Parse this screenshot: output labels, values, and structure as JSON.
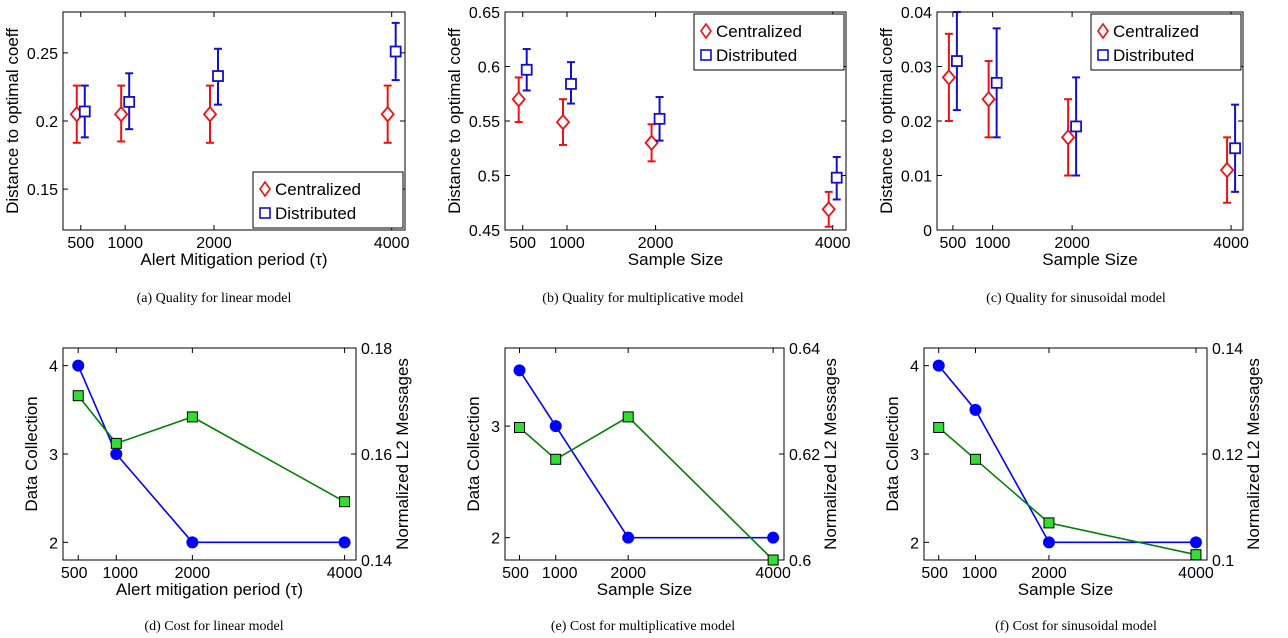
{
  "colors": {
    "centralized": "#ee1111",
    "distributed": "#1111cc",
    "data_collection": "#0000ff",
    "l2_messages": "#008000",
    "l2_marker_fill": "#33dd33"
  },
  "chart_data": [
    {
      "type": "scatter",
      "caption": "(a)  Quality for linear model",
      "xlabel": "Alert Mitigation period (τ)",
      "ylabel": "Distance to optimal coeff",
      "xlim": [
        300,
        4150
      ],
      "ylim": [
        0.12,
        0.28
      ],
      "xticks": [
        500,
        1000,
        2000,
        4000
      ],
      "yticks": [
        0.15,
        0.2,
        0.25
      ],
      "ytick_labels": [
        "0.15",
        "0.2",
        "0.25"
      ],
      "legend": "bottom-right",
      "series": [
        {
          "name": "Centralized",
          "marker": "diamond",
          "x": [
            500,
            1000,
            2000,
            4000
          ],
          "y": [
            0.205,
            0.205,
            0.205,
            0.205
          ],
          "err_low": [
            0.184,
            0.185,
            0.184,
            0.184
          ],
          "err_high": [
            0.226,
            0.226,
            0.226,
            0.226
          ]
        },
        {
          "name": "Distributed",
          "marker": "square",
          "x": [
            500,
            1000,
            2000,
            4000
          ],
          "y": [
            0.207,
            0.214,
            0.233,
            0.251
          ],
          "err_low": [
            0.188,
            0.194,
            0.212,
            0.23
          ],
          "err_high": [
            0.226,
            0.235,
            0.253,
            0.272
          ]
        }
      ]
    },
    {
      "type": "scatter",
      "caption": "(b)  Quality for multiplicative model",
      "xlabel": "Sample Size",
      "ylabel": "Distance to optimal coeff",
      "xlim": [
        300,
        4150
      ],
      "ylim": [
        0.45,
        0.65
      ],
      "xticks": [
        500,
        1000,
        2000,
        4000
      ],
      "yticks": [
        0.45,
        0.5,
        0.55,
        0.6,
        0.65
      ],
      "ytick_labels": [
        "0.45",
        "0.5",
        "0.55",
        "0.6",
        "0.65"
      ],
      "legend": "top-right",
      "series": [
        {
          "name": "Centralized",
          "marker": "diamond",
          "x": [
            500,
            1000,
            2000,
            4000
          ],
          "y": [
            0.57,
            0.549,
            0.53,
            0.469
          ],
          "err_low": [
            0.549,
            0.528,
            0.513,
            0.453
          ],
          "err_high": [
            0.59,
            0.57,
            0.547,
            0.485
          ]
        },
        {
          "name": "Distributed",
          "marker": "square",
          "x": [
            500,
            1000,
            2000,
            4000
          ],
          "y": [
            0.597,
            0.584,
            0.552,
            0.498
          ],
          "err_low": [
            0.578,
            0.566,
            0.532,
            0.478
          ],
          "err_high": [
            0.616,
            0.604,
            0.572,
            0.517
          ]
        }
      ]
    },
    {
      "type": "scatter",
      "caption": "(c)  Quality for sinusoidal model",
      "xlabel": "Sample Size",
      "ylabel": "Distance to optimal coeff",
      "xlim": [
        300,
        4150
      ],
      "ylim": [
        0,
        0.04
      ],
      "xticks": [
        500,
        1000,
        2000,
        4000
      ],
      "yticks": [
        0,
        0.01,
        0.02,
        0.03,
        0.04
      ],
      "ytick_labels": [
        "0",
        "0.01",
        "0.02",
        "0.03",
        "0.04"
      ],
      "legend": "top-right",
      "series": [
        {
          "name": "Centralized",
          "marker": "diamond",
          "x": [
            500,
            1000,
            2000,
            4000
          ],
          "y": [
            0.028,
            0.024,
            0.017,
            0.011
          ],
          "err_low": [
            0.02,
            0.017,
            0.01,
            0.005
          ],
          "err_high": [
            0.036,
            0.031,
            0.024,
            0.017
          ]
        },
        {
          "name": "Distributed",
          "marker": "square",
          "x": [
            500,
            1000,
            2000,
            4000
          ],
          "y": [
            0.031,
            0.027,
            0.019,
            0.015
          ],
          "err_low": [
            0.022,
            0.017,
            0.01,
            0.007
          ],
          "err_high": [
            0.04,
            0.037,
            0.028,
            0.023
          ]
        }
      ]
    },
    {
      "type": "line",
      "caption": "(d)  Cost for linear model",
      "xlabel": "Alert mitigation period (τ)",
      "ylabel": "Data Collection",
      "y2label": "Normalized L2 Messages",
      "xlim": [
        300,
        4150
      ],
      "ylim": [
        1.8,
        4.2
      ],
      "y2lim": [
        0.14,
        0.18
      ],
      "xticks": [
        500,
        1000,
        2000,
        4000
      ],
      "xtick_labels": [
        "500",
        "1000",
        "2000",
        "4000"
      ],
      "yticks": [
        2,
        3,
        4
      ],
      "ytick_labels": [
        "2",
        "3",
        "4"
      ],
      "y2ticks": [
        0.14,
        0.16,
        0.18
      ],
      "y2tick_labels": [
        "0.14",
        "0.16",
        "0.18"
      ],
      "series": [
        {
          "name": "Data Collection",
          "axis": "left",
          "marker": "circle",
          "x": [
            500,
            1000,
            2000,
            4000
          ],
          "y": [
            4,
            3,
            2,
            2
          ]
        },
        {
          "name": "Normalized L2 Messages",
          "axis": "right",
          "marker": "square",
          "x": [
            500,
            1000,
            2000,
            4000
          ],
          "y": [
            0.171,
            0.162,
            0.167,
            0.151
          ]
        }
      ]
    },
    {
      "type": "line",
      "caption": "(e)  Cost for multiplicative model",
      "xlabel": "Sample Size",
      "ylabel": "Data Collection",
      "y2label": "Normalized L2 Messages",
      "xlim": [
        300,
        4150
      ],
      "ylim": [
        1.8,
        3.7
      ],
      "y2lim": [
        0.6,
        0.64
      ],
      "xticks": [
        500,
        1000,
        2000,
        4000
      ],
      "xtick_labels": [
        "500",
        "1000",
        "2000",
        "4000"
      ],
      "yticks": [
        2,
        3
      ],
      "ytick_labels": [
        "2",
        "3"
      ],
      "y2ticks": [
        0.6,
        0.62,
        0.64
      ],
      "y2tick_labels": [
        "0.6",
        "0.62",
        "0.64"
      ],
      "series": [
        {
          "name": "Data Collection",
          "axis": "left",
          "marker": "circle",
          "x": [
            500,
            1000,
            2000,
            4000
          ],
          "y": [
            3.5,
            3.0,
            2.0,
            2.0
          ]
        },
        {
          "name": "Normalized L2 Messages",
          "axis": "right",
          "marker": "square",
          "x": [
            500,
            1000,
            2000,
            4000
          ],
          "y": [
            0.625,
            0.619,
            0.627,
            0.6
          ]
        }
      ]
    },
    {
      "type": "line",
      "caption": "(f)  Cost for sinusoidal model",
      "xlabel": "Sample Size",
      "ylabel": "Data Collection",
      "y2label": "Normalized L2 Messages",
      "xlim": [
        300,
        4150
      ],
      "ylim": [
        1.8,
        4.2
      ],
      "y2lim": [
        0.1,
        0.14
      ],
      "xticks": [
        500,
        1000,
        2000,
        4000
      ],
      "xtick_labels": [
        "500",
        "1000",
        "2000",
        "4000"
      ],
      "yticks": [
        2,
        3,
        4
      ],
      "ytick_labels": [
        "2",
        "3",
        "4"
      ],
      "y2ticks": [
        0.1,
        0.12,
        0.14
      ],
      "y2tick_labels": [
        "0.1",
        "0.12",
        "0.14"
      ],
      "series": [
        {
          "name": "Data Collection",
          "axis": "left",
          "marker": "circle",
          "x": [
            500,
            1000,
            2000,
            4000
          ],
          "y": [
            4,
            3.5,
            2,
            2
          ]
        },
        {
          "name": "Normalized L2 Messages",
          "axis": "right",
          "marker": "square",
          "x": [
            500,
            1000,
            2000,
            4000
          ],
          "y": [
            0.125,
            0.119,
            0.107,
            0.101
          ]
        }
      ]
    }
  ]
}
